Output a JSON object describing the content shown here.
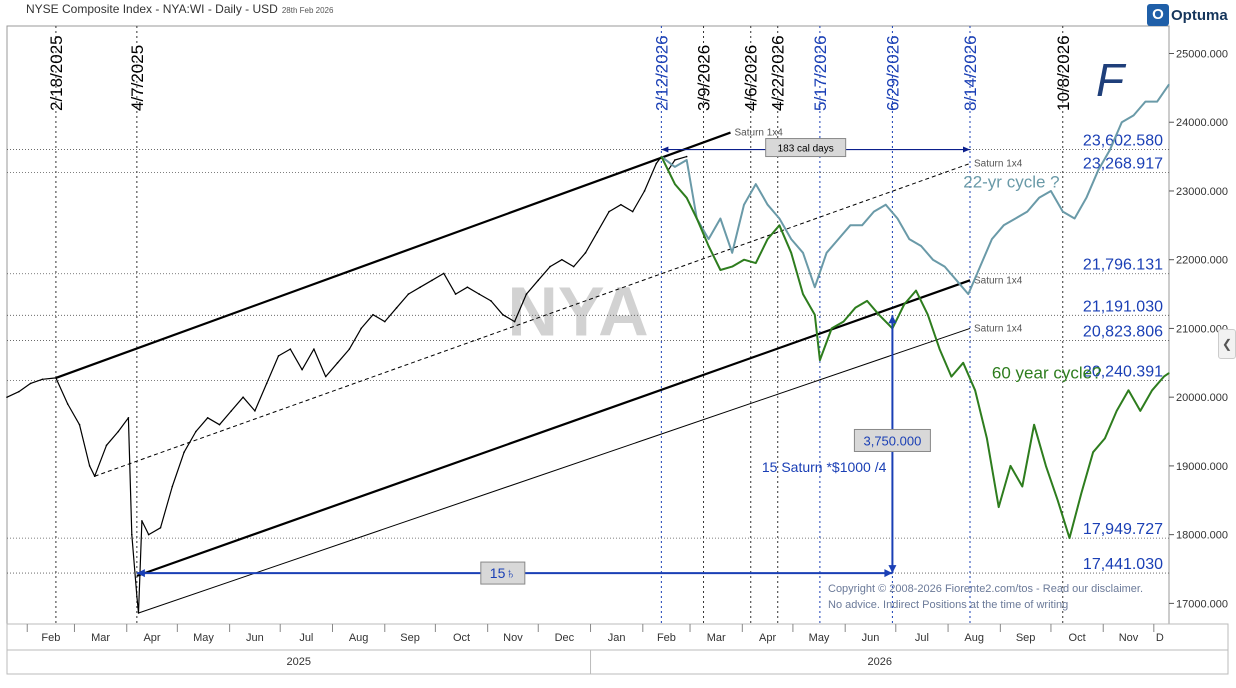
{
  "header": {
    "title": "NYSE Composite Index - NYA:WI - Daily - USD",
    "date_note": "28th Feb 2026",
    "brand": "Optuma",
    "brand_mark": "O",
    "author_mark": "F"
  },
  "watermark": "NYA",
  "copyright": [
    "Copyright © 2008-2026 Fiorente2.com/tos - Read our disclaimer.",
    "No advice. Indirect Positions at the time of writing"
  ],
  "colors": {
    "price": "#000000",
    "cycle22": "#6a9aa8",
    "cycle60": "#2e7d1e",
    "annotation_blue": "#1a3fb5",
    "dark_blue": "#0b1f8c",
    "grid": "#777777"
  },
  "chart_data": {
    "type": "line",
    "title": "NYSE Composite Index - NYA:WI - Daily - USD",
    "x_axis": {
      "months": [
        "Feb",
        "Mar",
        "Apr",
        "May",
        "Jun",
        "Jul",
        "Aug",
        "Sep",
        "Oct",
        "Nov",
        "Dec",
        "Jan",
        "Feb",
        "Mar",
        "Apr",
        "May",
        "Jun",
        "Jul",
        "Aug",
        "Sep",
        "Oct",
        "Nov",
        "D"
      ],
      "years": [
        "2025",
        "2026"
      ],
      "range": [
        "2025-01-20",
        "2026-12-10"
      ]
    },
    "y_axis": {
      "ticks": [
        "17000.000",
        "18000.000",
        "19000.000",
        "20000.000",
        "21000.000",
        "22000.000",
        "23000.000",
        "24000.000",
        "25000.000"
      ],
      "range": [
        16700,
        25400
      ],
      "side": "right"
    },
    "series": [
      {
        "key": "price",
        "points": [
          [
            "2025-01-20",
            20000
          ],
          [
            "2025-01-27",
            20080
          ],
          [
            "2025-02-03",
            20200
          ],
          [
            "2025-02-10",
            20260
          ],
          [
            "2025-02-18",
            20280
          ],
          [
            "2025-02-25",
            19900
          ],
          [
            "2025-03-04",
            19600
          ],
          [
            "2025-03-10",
            19000
          ],
          [
            "2025-03-13",
            18850
          ],
          [
            "2025-03-20",
            19300
          ],
          [
            "2025-03-27",
            19500
          ],
          [
            "2025-04-02",
            19700
          ],
          [
            "2025-04-04",
            18000
          ],
          [
            "2025-04-07",
            17100
          ],
          [
            "2025-04-08",
            16860
          ],
          [
            "2025-04-10",
            18200
          ],
          [
            "2025-04-14",
            18000
          ],
          [
            "2025-04-21",
            18100
          ],
          [
            "2025-04-28",
            18700
          ],
          [
            "2025-05-05",
            19200
          ],
          [
            "2025-05-12",
            19500
          ],
          [
            "2025-05-19",
            19700
          ],
          [
            "2025-05-26",
            19600
          ],
          [
            "2025-06-02",
            19800
          ],
          [
            "2025-06-09",
            20000
          ],
          [
            "2025-06-16",
            19800
          ],
          [
            "2025-06-23",
            20200
          ],
          [
            "2025-06-30",
            20600
          ],
          [
            "2025-07-07",
            20700
          ],
          [
            "2025-07-14",
            20400
          ],
          [
            "2025-07-21",
            20700
          ],
          [
            "2025-07-28",
            20300
          ],
          [
            "2025-08-04",
            20500
          ],
          [
            "2025-08-11",
            20700
          ],
          [
            "2025-08-18",
            21000
          ],
          [
            "2025-08-25",
            21200
          ],
          [
            "2025-09-01",
            21100
          ],
          [
            "2025-09-08",
            21300
          ],
          [
            "2025-09-15",
            21500
          ],
          [
            "2025-09-22",
            21600
          ],
          [
            "2025-09-29",
            21700
          ],
          [
            "2025-10-06",
            21800
          ],
          [
            "2025-10-13",
            21500
          ],
          [
            "2025-10-20",
            21600
          ],
          [
            "2025-10-27",
            21500
          ],
          [
            "2025-11-03",
            21400
          ],
          [
            "2025-11-10",
            21200
          ],
          [
            "2025-11-17",
            21100
          ],
          [
            "2025-11-24",
            21500
          ],
          [
            "2025-12-01",
            21700
          ],
          [
            "2025-12-08",
            21900
          ],
          [
            "2025-12-15",
            22000
          ],
          [
            "2025-12-22",
            21900
          ],
          [
            "2025-12-29",
            22100
          ],
          [
            "2026-01-05",
            22400
          ],
          [
            "2026-01-12",
            22700
          ],
          [
            "2026-01-19",
            22800
          ],
          [
            "2026-01-26",
            22700
          ],
          [
            "2026-02-02",
            23000
          ],
          [
            "2026-02-09",
            23400
          ],
          [
            "2026-02-12",
            23500
          ],
          [
            "2026-02-16",
            23300
          ],
          [
            "2026-02-20",
            23450
          ],
          [
            "2026-02-27",
            23500
          ]
        ]
      },
      {
        "key": "cycle22",
        "name": "22-yr cycle ?",
        "points": [
          [
            "2026-02-12",
            23500
          ],
          [
            "2026-02-20",
            23350
          ],
          [
            "2026-02-27",
            23450
          ],
          [
            "2026-03-05",
            22600
          ],
          [
            "2026-03-12",
            22300
          ],
          [
            "2026-03-19",
            22600
          ],
          [
            "2026-03-26",
            22100
          ],
          [
            "2026-04-02",
            22800
          ],
          [
            "2026-04-09",
            23100
          ],
          [
            "2026-04-16",
            22800
          ],
          [
            "2026-04-23",
            22600
          ],
          [
            "2026-04-30",
            22300
          ],
          [
            "2026-05-07",
            22100
          ],
          [
            "2026-05-14",
            21600
          ],
          [
            "2026-05-21",
            22100
          ],
          [
            "2026-05-28",
            22300
          ],
          [
            "2026-06-04",
            22500
          ],
          [
            "2026-06-11",
            22500
          ],
          [
            "2026-06-18",
            22700
          ],
          [
            "2026-06-25",
            22800
          ],
          [
            "2026-07-02",
            22600
          ],
          [
            "2026-07-09",
            22300
          ],
          [
            "2026-07-16",
            22200
          ],
          [
            "2026-07-23",
            22000
          ],
          [
            "2026-07-30",
            21900
          ],
          [
            "2026-08-06",
            21700
          ],
          [
            "2026-08-13",
            21500
          ],
          [
            "2026-08-20",
            21900
          ],
          [
            "2026-08-27",
            22300
          ],
          [
            "2026-09-03",
            22500
          ],
          [
            "2026-09-10",
            22600
          ],
          [
            "2026-09-17",
            22700
          ],
          [
            "2026-09-24",
            22900
          ],
          [
            "2026-10-01",
            23000
          ],
          [
            "2026-10-08",
            22700
          ],
          [
            "2026-10-15",
            22600
          ],
          [
            "2026-10-22",
            22900
          ],
          [
            "2026-10-29",
            23300
          ],
          [
            "2026-11-05",
            23600
          ],
          [
            "2026-11-12",
            24000
          ],
          [
            "2026-11-19",
            24100
          ],
          [
            "2026-11-26",
            24300
          ],
          [
            "2026-12-03",
            24300
          ],
          [
            "2026-12-10",
            24550
          ]
        ]
      },
      {
        "key": "cycle60",
        "name": "60 year cycle?",
        "points": [
          [
            "2026-02-12",
            23500
          ],
          [
            "2026-02-20",
            23100
          ],
          [
            "2026-02-27",
            22900
          ],
          [
            "2026-03-05",
            22600
          ],
          [
            "2026-03-12",
            22200
          ],
          [
            "2026-03-19",
            21850
          ],
          [
            "2026-03-26",
            21900
          ],
          [
            "2026-04-02",
            22000
          ],
          [
            "2026-04-09",
            21950
          ],
          [
            "2026-04-16",
            22300
          ],
          [
            "2026-04-23",
            22500
          ],
          [
            "2026-04-30",
            22100
          ],
          [
            "2026-05-07",
            21500
          ],
          [
            "2026-05-14",
            21200
          ],
          [
            "2026-05-17",
            20540
          ],
          [
            "2026-05-24",
            21000
          ],
          [
            "2026-05-31",
            21100
          ],
          [
            "2026-06-07",
            21300
          ],
          [
            "2026-06-14",
            21400
          ],
          [
            "2026-06-21",
            21200
          ],
          [
            "2026-06-29",
            21000
          ],
          [
            "2026-07-06",
            21350
          ],
          [
            "2026-07-13",
            21550
          ],
          [
            "2026-07-20",
            21200
          ],
          [
            "2026-07-27",
            20700
          ],
          [
            "2026-08-03",
            20300
          ],
          [
            "2026-08-10",
            20500
          ],
          [
            "2026-08-17",
            20100
          ],
          [
            "2026-08-24",
            19400
          ],
          [
            "2026-08-31",
            18400
          ],
          [
            "2026-09-07",
            19000
          ],
          [
            "2026-09-14",
            18700
          ],
          [
            "2026-09-21",
            19600
          ],
          [
            "2026-09-28",
            19000
          ],
          [
            "2026-10-05",
            18500
          ],
          [
            "2026-10-12",
            17950
          ],
          [
            "2026-10-19",
            18600
          ],
          [
            "2026-10-26",
            19200
          ],
          [
            "2026-11-02",
            19400
          ],
          [
            "2026-11-09",
            19800
          ],
          [
            "2026-11-16",
            20100
          ],
          [
            "2026-11-23",
            19800
          ],
          [
            "2026-11-30",
            20100
          ],
          [
            "2026-12-07",
            20300
          ],
          [
            "2026-12-10",
            20350
          ]
        ]
      }
    ],
    "date_markers": [
      {
        "date": "2025-02-18",
        "label": "2/18/2025",
        "color": "#000000"
      },
      {
        "date": "2025-04-07",
        "label": "4/7/2025",
        "color": "#000000"
      },
      {
        "date": "2026-02-12",
        "label": "2/12/2026",
        "color": "#1a3fb5"
      },
      {
        "date": "2026-03-09",
        "label": "3/9/2026",
        "color": "#000000"
      },
      {
        "date": "2026-04-06",
        "label": "4/6/2026",
        "color": "#000000"
      },
      {
        "date": "2026-04-22",
        "label": "4/22/2026",
        "color": "#000000"
      },
      {
        "date": "2026-05-17",
        "label": "5/17/2026",
        "color": "#1a3fb5"
      },
      {
        "date": "2026-06-29",
        "label": "6/29/2026",
        "color": "#1a3fb5"
      },
      {
        "date": "2026-08-14",
        "label": "8/14/2026",
        "color": "#1a3fb5"
      },
      {
        "date": "2026-10-08",
        "label": "10/8/2026",
        "color": "#000000"
      }
    ],
    "price_levels": [
      {
        "value": 23602.58,
        "label": "23,602.580"
      },
      {
        "value": 23268.917,
        "label": "23,268.917"
      },
      {
        "value": 21796.131,
        "label": "21,796.131"
      },
      {
        "value": 21191.03,
        "label": "21,191.030"
      },
      {
        "value": 20823.806,
        "label": "20,823.806"
      },
      {
        "value": 20240.391,
        "label": "20,240.391"
      },
      {
        "value": 17949.727,
        "label": "17,949.727"
      },
      {
        "value": 17441.03,
        "label": "17,441.030"
      }
    ],
    "trend_lines": [
      {
        "from": [
          "2025-02-18",
          20280
        ],
        "to": [
          "2026-03-25",
          23850
        ],
        "style": "thick",
        "label": "Saturn 1x4"
      },
      {
        "from": [
          "2025-03-13",
          18850
        ],
        "to": [
          "2026-08-14",
          23400
        ],
        "style": "dashed",
        "label": "Saturn 1x4"
      },
      {
        "from": [
          "2025-04-07",
          17400
        ],
        "to": [
          "2026-08-14",
          21700
        ],
        "style": "thick",
        "label": "Saturn 1x4"
      },
      {
        "from": [
          "2025-04-08",
          16860
        ],
        "to": [
          "2026-08-14",
          21000
        ],
        "style": "thin",
        "label": "Saturn 1x4"
      }
    ],
    "annotations": {
      "cal_days_label": "183 cal days",
      "cal_days_span": [
        "2026-02-12",
        "2026-08-14"
      ],
      "vertical_value_label": "3,750.000",
      "saturn_formula": "15 Saturn *$1000 /4",
      "horizontal_span_label": "15♄",
      "horizontal_span": [
        "2025-04-07",
        "2026-06-29"
      ]
    }
  }
}
